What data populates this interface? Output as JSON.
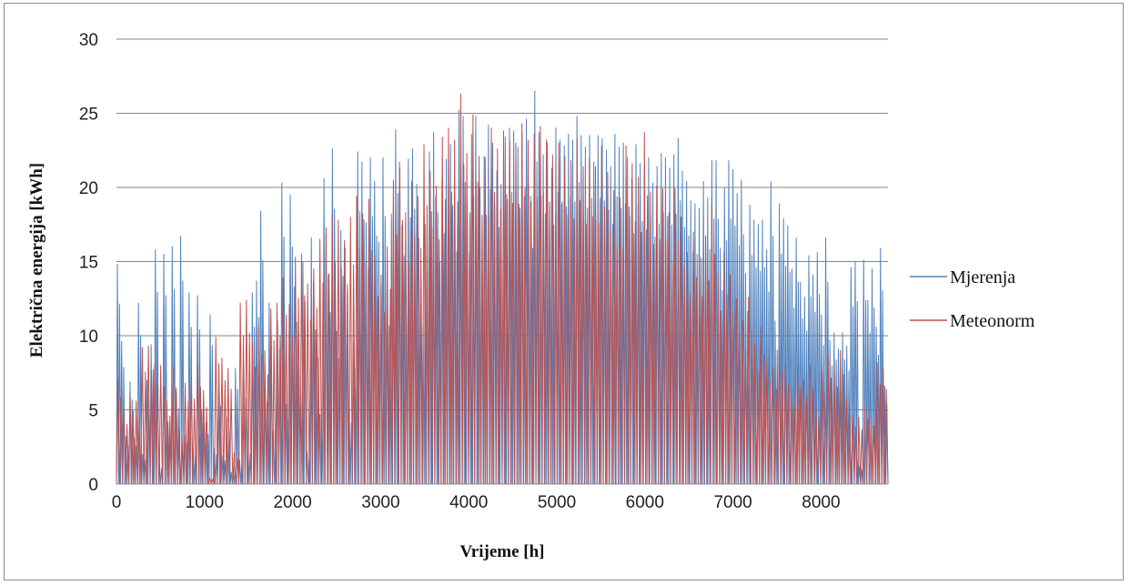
{
  "chart_data": {
    "type": "line",
    "title": "",
    "xlabel": "Vrijeme [h]",
    "ylabel": "Električna energija [kWh]",
    "xlim": [
      0,
      8760
    ],
    "ylim": [
      0,
      30
    ],
    "x_ticks": [
      0,
      1000,
      2000,
      3000,
      4000,
      5000,
      6000,
      7000,
      8000
    ],
    "y_ticks": [
      0,
      5,
      10,
      15,
      20,
      25,
      30
    ],
    "grid": "horizontal",
    "legend_position": "right",
    "series": [
      {
        "name": "Mjerenja",
        "color": "#4f81bd",
        "daily_peaks": [
          14.8,
          9.6,
          3.2,
          6.9,
          3.1,
          12.2,
          2.0,
          7.0,
          9.4,
          15.8,
          1.3,
          15.5,
          4.2,
          16.0,
          6.2,
          16.7,
          3.3,
          12.9,
          2.3,
          12.7,
          5.0,
          4.1,
          11.4,
          2.4,
          6.4,
          1.9,
          4.5,
          0.8,
          7.8,
          1.6,
          7.0,
          2.5,
          12.9,
          13.7,
          18.4,
          6.8,
          12.2,
          3.6,
          11.0,
          20.3,
          5.4,
          19.5,
          13.3,
          7.7,
          15.0,
          2.2,
          16.6,
          10.4,
          4.7,
          20.6,
          14.1,
          22.6,
          10.3,
          17.1,
          15.9,
          5.0,
          9.6,
          22.4,
          21.7,
          17.6,
          22.0,
          20.4,
          16.3,
          22.0,
          13.0,
          18.2,
          23.9,
          21.3,
          15.4,
          21.9,
          22.6,
          20.2,
          12.9,
          17.5,
          22.4,
          23.7,
          18.3,
          20.6,
          21.9,
          22.9,
          19.1,
          25.2,
          24.8,
          19.0,
          23.6,
          24.8,
          20.0,
          22.1,
          24.2,
          23.0,
          21.1,
          20.2,
          23.4,
          24.0,
          23.8,
          22.7,
          23.6,
          24.6,
          19.4,
          26.5,
          23.7,
          22.2,
          23.0,
          21.3,
          24.0,
          23.2,
          22.8,
          23.6,
          23.2,
          24.8,
          23.5,
          22.7,
          23.5,
          21.7,
          23.5,
          23.3,
          22.5,
          21.4,
          23.6,
          22.7,
          23.0,
          22.0,
          20.6,
          22.9,
          21.6,
          20.9,
          22.0,
          20.3,
          21.4,
          22.3,
          22.0,
          21.3,
          22.2,
          23.3,
          21.1,
          20.4,
          19.1,
          18.9,
          18.6,
          20.4,
          19.3,
          21.8,
          21.8,
          15.9,
          20.0,
          21.8,
          21.2,
          19.6,
          20.5,
          14.2,
          18.8,
          17.8,
          17.5,
          17.8,
          15.8,
          20.4,
          11.0,
          18.9,
          17.9,
          17.4,
          14.5,
          16.6,
          13.6,
          12.6,
          15.4,
          14.1,
          15.6,
          11.4,
          16.6,
          9.7,
          10.2,
          9.1,
          10.2,
          9.3,
          14.6,
          15.0,
          1.2,
          15.1,
          12.4,
          14.5,
          10.6,
          15.9,
          6.6
        ]
      },
      {
        "name": "Meteonorm",
        "color": "#c0504d",
        "daily_peaks": [
          7.1,
          4.9,
          6.0,
          5.6,
          9.2,
          9.3,
          8.1,
          8.0,
          5.6,
          7.9,
          3.7,
          6.8,
          7.0,
          8.0,
          6.3,
          0.4,
          9.9,
          8.5,
          7.8,
          2.1,
          12.2,
          12.4,
          9.6,
          10.6,
          9.0,
          11.8,
          12.2,
          13.9,
          12.1,
          15.3,
          15.5,
          13.5,
          14.5,
          16.5,
          17.3,
          18.2,
          17.8,
          16.4,
          18.0,
          19.4,
          18.2,
          19.2,
          15.4,
          14.1,
          16.0,
          20.5,
          21.7,
          18.3,
          20.4,
          19.4,
          22.9,
          21.1,
          20.1,
          23.4,
          24.0,
          23.2,
          26.3,
          22.3,
          24.9,
          22.1,
          22.0,
          24.0,
          22.6,
          23.8,
          23.1,
          23.0,
          24.3,
          23.2,
          23.6,
          24.1,
          23.2,
          22.2,
          23.0,
          22.1,
          21.8,
          23.3,
          21.4,
          22.0,
          21.4,
          22.8,
          21.0,
          19.8,
          19.3,
          22.8,
          21.6,
          20.7,
          23.7,
          19.7,
          20.1,
          19.9,
          18.3,
          19.9,
          18.0,
          15.6,
          17.0,
          15.4,
          16.7,
          18.9,
          14.2,
          15.6,
          14.1,
          12.5,
          11.0,
          12.6,
          9.4,
          10.6,
          8.5,
          7.8,
          9.2,
          8.1,
          6.4,
          7.9,
          7.0,
          8.0,
          5.5,
          7.6,
          8.7,
          8.0,
          9.0,
          5.8,
          4.7,
          4.5,
          5.3,
          4.8,
          8.2,
          7.8
        ]
      }
    ]
  }
}
